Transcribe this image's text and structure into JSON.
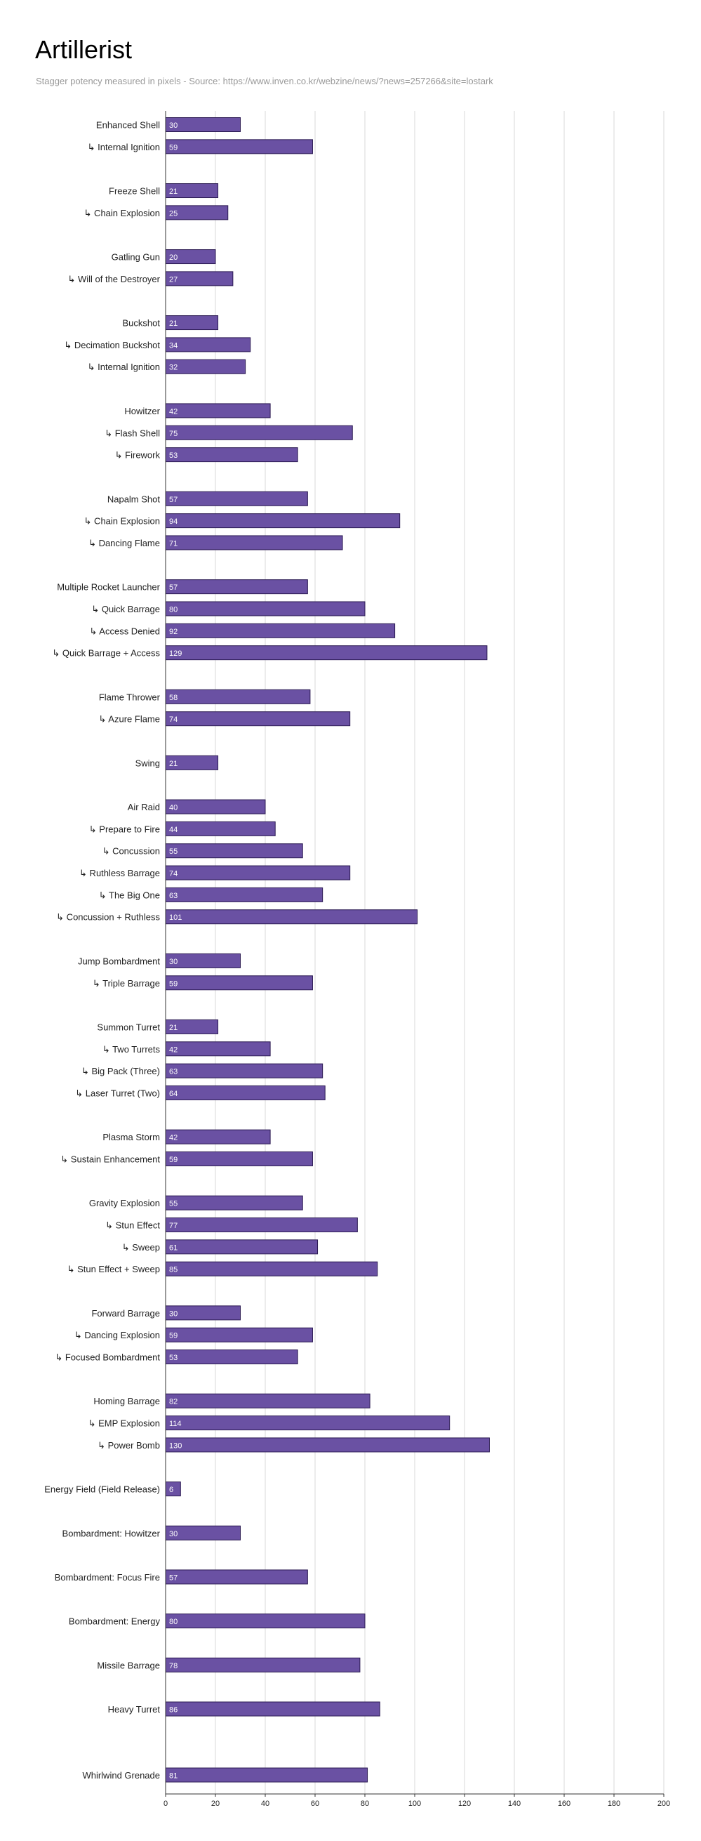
{
  "chart_data": {
    "type": "bar",
    "orientation": "horizontal",
    "title": "Artillerist",
    "subtitle": "Stagger potency measured in pixels - Source: https://www.inven.co.kr/webzine/news/?news=257266&site=lostark",
    "xlabel": "",
    "ylabel": "",
    "xlim": [
      0,
      200
    ],
    "x_ticks": [
      0,
      20,
      40,
      60,
      80,
      100,
      120,
      140,
      160,
      180,
      200
    ],
    "grid": true,
    "bar_color": "#6A51A3",
    "bar_border_color": "#2B1A52",
    "data_labels": true,
    "categories": [
      "Enhanced Shell",
      "↳ Internal Ignition",
      "",
      "Freeze Shell",
      "↳ Chain Explosion",
      "",
      "Gatling Gun",
      "↳ Will of the Destroyer",
      "",
      "Buckshot",
      "↳ Decimation Buckshot",
      "↳ Internal Ignition",
      "",
      "Howitzer",
      "↳ Flash Shell",
      "↳ Firework",
      "",
      "Napalm Shot",
      "↳ Chain Explosion",
      "↳ Dancing Flame",
      "",
      "Multiple Rocket Launcher",
      "↳ Quick Barrage",
      "↳ Access Denied",
      "↳ Quick Barrage + Access",
      "",
      "Flame Thrower",
      "↳ Azure Flame",
      "",
      "Swing",
      "",
      "Air Raid",
      "↳ Prepare to Fire",
      "↳ Concussion",
      "↳ Ruthless Barrage",
      "↳ The Big One",
      "↳ Concussion + Ruthless",
      "",
      "Jump Bombardment",
      "↳ Triple Barrage",
      "",
      "Summon Turret",
      "↳  Two Turrets",
      "↳ Big Pack (Three)",
      "↳  Laser Turret (Two)",
      "",
      "Plasma Storm",
      "↳ Sustain Enhancement",
      "",
      "Gravity Explosion",
      "↳ Stun Effect",
      "↳ Sweep",
      "↳ Stun Effect + Sweep",
      "",
      "Forward Barrage",
      "↳ Dancing Explosion",
      "↳ Focused Bombardment",
      "",
      "Homing Barrage",
      "↳ EMP Explosion",
      "↳ Power Bomb",
      "",
      "Energy Field (Field Release)",
      "",
      "Bombardment: Howitzer",
      "",
      "Bombardment: Focus Fire",
      "",
      "Bombardment: Energy",
      "",
      "Missile Barrage",
      "",
      "Heavy Turret",
      "",
      "",
      "Whirlwind Grenade"
    ],
    "values": [
      30,
      59,
      null,
      21,
      25,
      null,
      20,
      27,
      null,
      21,
      34,
      32,
      null,
      42,
      75,
      53,
      null,
      57,
      94,
      71,
      null,
      57,
      80,
      92,
      129,
      null,
      58,
      74,
      null,
      21,
      null,
      40,
      44,
      55,
      74,
      63,
      101,
      null,
      30,
      59,
      null,
      21,
      42,
      63,
      64,
      null,
      42,
      59,
      null,
      55,
      77,
      61,
      85,
      null,
      30,
      59,
      53,
      null,
      82,
      114,
      130,
      null,
      6,
      null,
      30,
      null,
      57,
      null,
      80,
      null,
      78,
      null,
      86,
      null,
      null,
      81
    ]
  }
}
